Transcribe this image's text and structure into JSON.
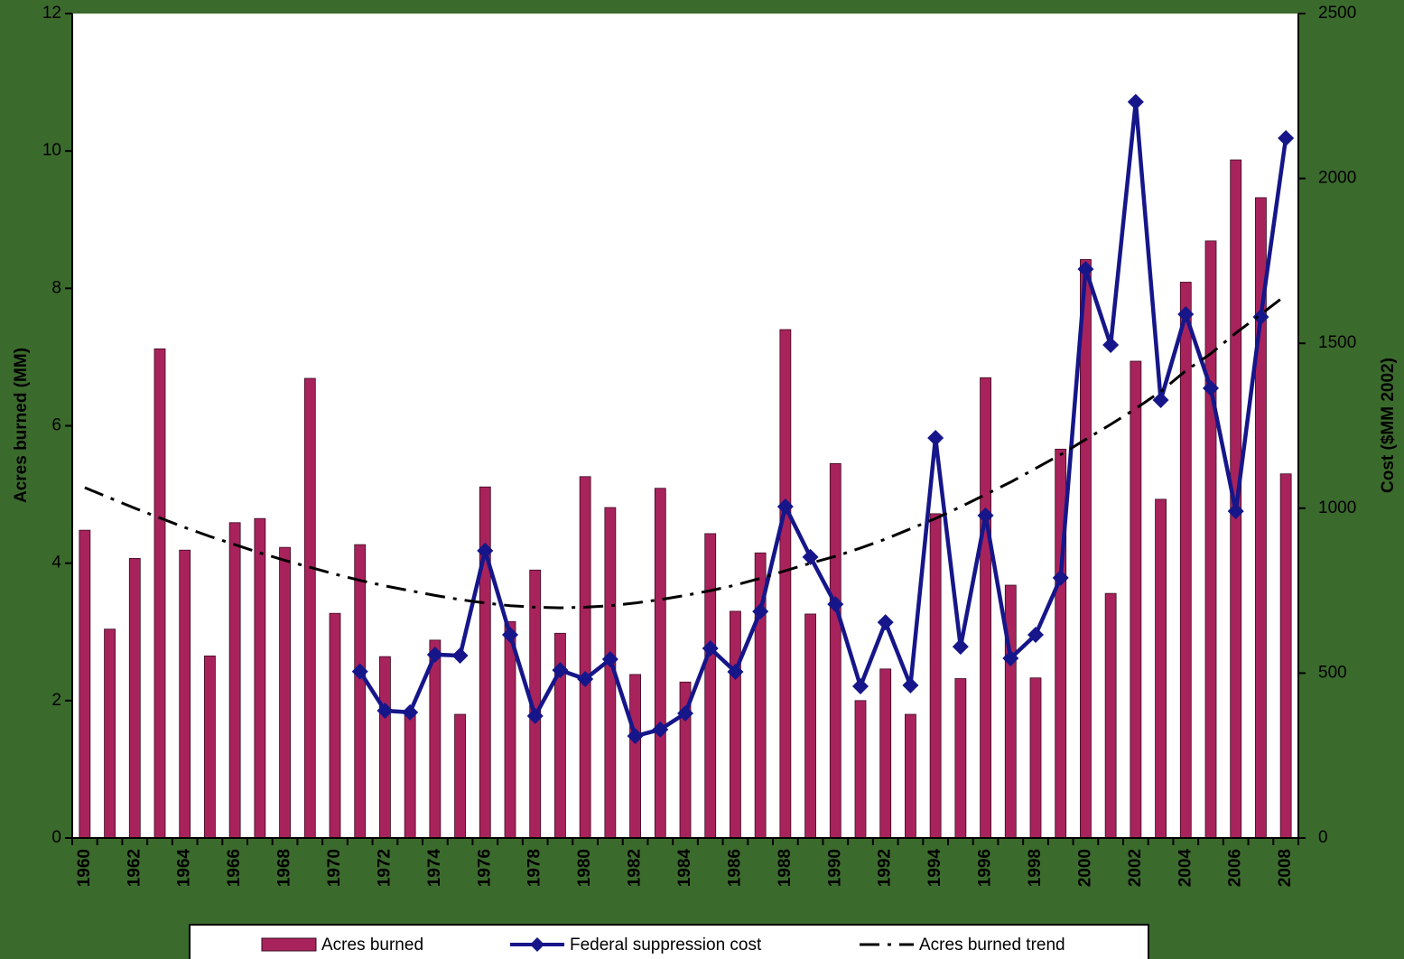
{
  "chart_data": {
    "type": "bar",
    "categories": [
      "1960",
      null,
      "1962",
      null,
      "1964",
      null,
      "1966",
      null,
      "1968",
      null,
      "1970",
      null,
      "1972",
      null,
      "1974",
      null,
      "1976",
      null,
      "1978",
      null,
      "1980",
      null,
      "1982",
      null,
      "1984",
      null,
      "1986",
      null,
      "1988",
      null,
      "1990",
      null,
      "1992",
      null,
      "1994",
      null,
      "1996",
      null,
      "1998",
      null,
      "2000",
      null,
      "2002",
      null,
      "2004",
      null,
      "2006",
      null,
      "2008"
    ],
    "y_label": "Acres burned (MM)",
    "y2_label": "Cost ($MM 2002)",
    "ylim": [
      0,
      12
    ],
    "yticks": [
      0,
      2,
      4,
      6,
      8,
      10,
      12
    ],
    "y2lim": [
      0,
      2500
    ],
    "y2ticks": [
      0,
      500,
      1000,
      1500,
      2000,
      2500
    ],
    "grid": false,
    "legend": "bottom",
    "series": [
      {
        "name": "Acres burned",
        "type": "bar",
        "color": "#a8235c",
        "values": [
          4.48,
          3.04,
          4.07,
          7.12,
          4.19,
          2.65,
          4.59,
          4.65,
          4.23,
          6.69,
          3.27,
          4.27,
          2.64,
          1.8,
          2.88,
          1.8,
          5.11,
          3.15,
          3.9,
          2.98,
          5.26,
          4.81,
          2.38,
          5.09,
          2.27,
          4.43,
          3.3,
          4.15,
          7.4,
          3.26,
          5.45,
          2.0,
          2.46,
          1.8,
          4.72,
          2.32,
          6.7,
          3.68,
          2.33,
          5.66,
          8.42,
          3.56,
          6.94,
          4.93,
          8.09,
          8.69,
          9.87,
          9.32,
          5.3
        ]
      },
      {
        "name": "Federal suppression cost",
        "type": "line",
        "marker": "diamond",
        "axis": "y2",
        "color": "#16168a",
        "values": [
          null,
          null,
          null,
          null,
          null,
          null,
          null,
          null,
          null,
          null,
          null,
          505,
          386,
          381,
          556,
          553,
          871,
          616,
          370,
          509,
          482,
          542,
          309,
          329,
          378,
          575,
          504,
          687,
          1005,
          852,
          709,
          460,
          654,
          463,
          1213,
          580,
          978,
          545,
          616,
          789,
          1725,
          1495,
          2232,
          1328,
          1588,
          1364,
          991,
          1580,
          2122
        ]
      },
      {
        "name": "Acres burned trend",
        "type": "line",
        "line_style": "dash-dot",
        "color": "#000000",
        "values": [
          5.1,
          4.95,
          4.8,
          4.66,
          4.52,
          4.39,
          4.27,
          4.15,
          4.04,
          3.94,
          3.84,
          3.75,
          3.67,
          3.6,
          3.53,
          3.47,
          3.42,
          3.38,
          3.36,
          3.35,
          3.36,
          3.38,
          3.42,
          3.47,
          3.53,
          3.6,
          3.68,
          3.78,
          3.89,
          4.0,
          4.1,
          4.22,
          4.35,
          4.5,
          4.65,
          4.82,
          5.0,
          5.18,
          5.38,
          5.58,
          5.8,
          6.02,
          6.25,
          6.5,
          6.8,
          7.05,
          7.35,
          7.62,
          7.9
        ]
      }
    ]
  }
}
